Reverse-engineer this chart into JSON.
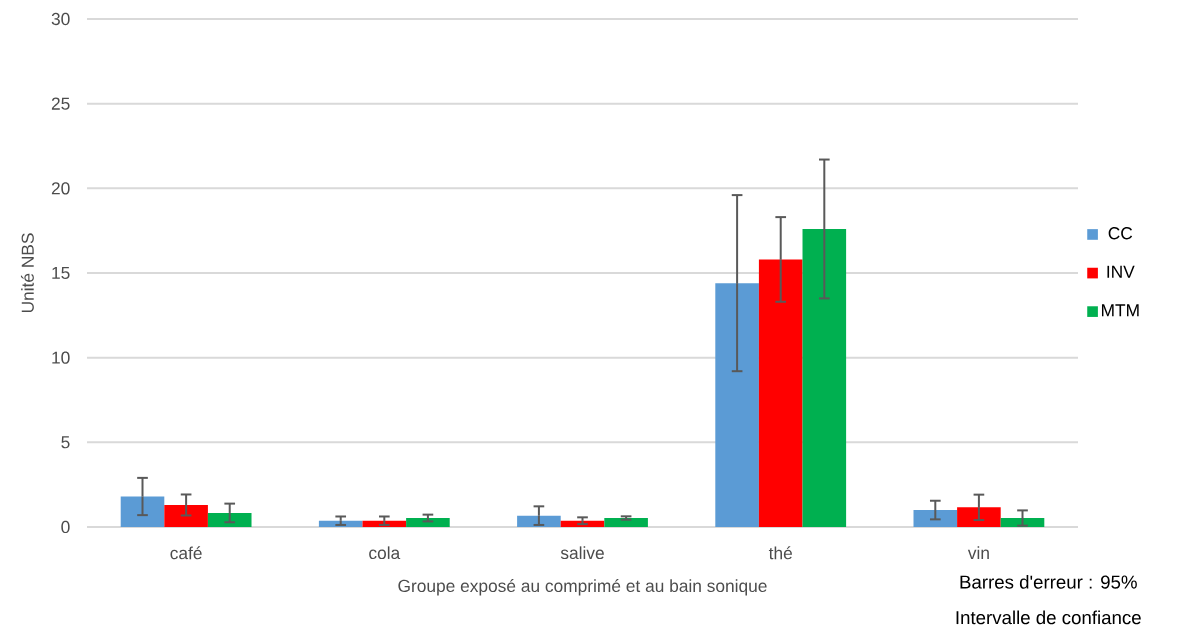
{
  "chart_data": {
    "type": "bar",
    "xlabel": "Groupe exposé au comprimé et au bain sonique",
    "ylabel": "Unité NBS",
    "categories": [
      "café",
      "cola",
      "salive",
      "thé",
      "vin"
    ],
    "series": [
      {
        "name": "CC",
        "color": "#5b9bd5",
        "values": [
          1.8,
          0.37,
          0.67,
          14.4,
          1.0
        ],
        "errors": [
          1.1,
          0.25,
          0.55,
          5.2,
          0.55
        ]
      },
      {
        "name": "INV",
        "color": "#ff0000",
        "values": [
          1.3,
          0.37,
          0.37,
          15.8,
          1.16
        ],
        "errors": [
          0.62,
          0.25,
          0.2,
          2.5,
          0.75
        ]
      },
      {
        "name": "MTM",
        "color": "#00b050",
        "values": [
          0.83,
          0.53,
          0.53,
          17.6,
          0.53
        ],
        "errors": [
          0.55,
          0.2,
          0.1,
          4.1,
          0.45
        ]
      }
    ],
    "ylim": [
      0,
      30
    ],
    "yticks": [
      0,
      5,
      10,
      15,
      20,
      25,
      30
    ],
    "grid": "y",
    "legend": "right",
    "annotations": [
      "Barres d'erreur : 95%",
      "Intervalle de confiance"
    ]
  }
}
